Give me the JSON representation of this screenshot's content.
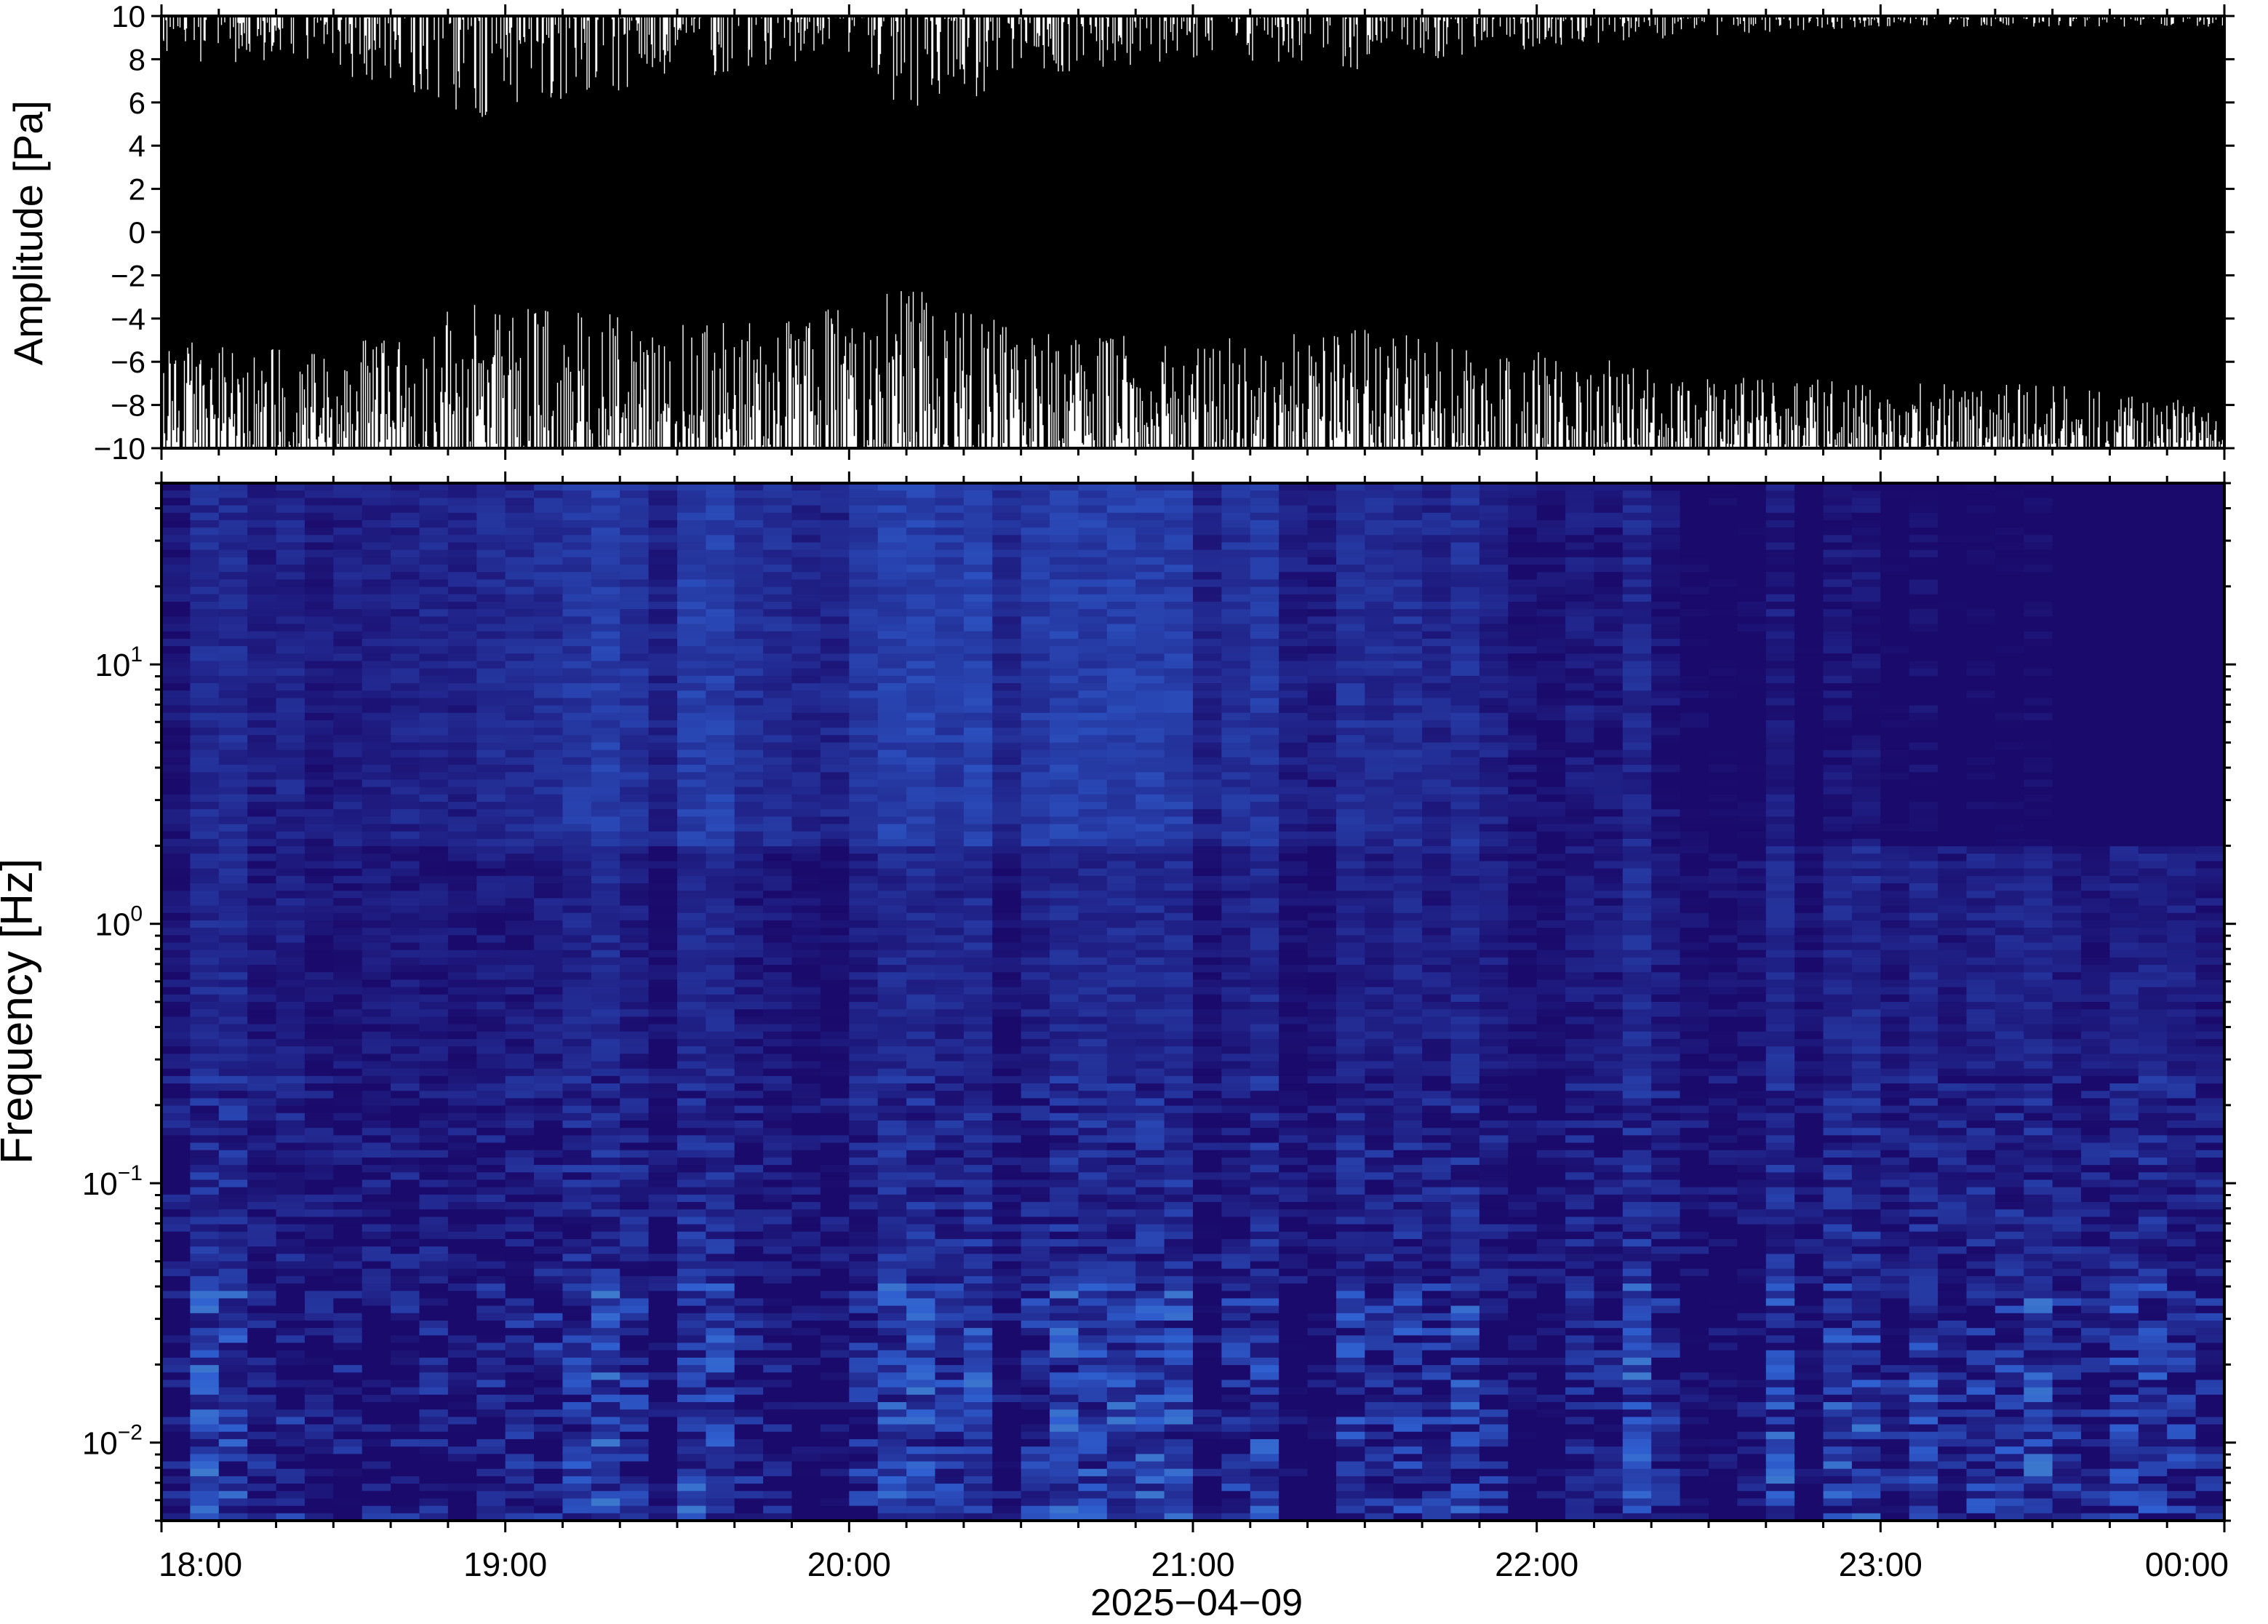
{
  "chart_data": [
    {
      "type": "line",
      "panel": "waveform",
      "ylabel": "Amplitude [Pa]",
      "ylim": [
        -10,
        10
      ],
      "yticks": [
        {
          "value": 10,
          "label": "10"
        },
        {
          "value": 8,
          "label": "8"
        },
        {
          "value": 6,
          "label": "6"
        },
        {
          "value": 4,
          "label": "4"
        },
        {
          "value": 2,
          "label": "2"
        },
        {
          "value": 0,
          "label": "0"
        },
        {
          "value": -2,
          "label": "−2"
        },
        {
          "value": -4,
          "label": "−4"
        },
        {
          "value": -6,
          "label": "−6"
        },
        {
          "value": -8,
          "label": "−8"
        },
        {
          "value": -10,
          "label": "−10"
        }
      ],
      "xlim": [
        "18:00",
        "00:00"
      ],
      "envelope": {
        "x": [
          "18:00",
          "18:30",
          "18:55",
          "19:30",
          "20:00",
          "20:10",
          "20:30",
          "21:00",
          "21:30",
          "22:00",
          "22:30",
          "23:00",
          "23:30",
          "00:00"
        ],
        "upper_min": [
          8,
          7.5,
          5,
          7,
          8,
          5,
          7,
          8,
          7.5,
          8.5,
          9,
          9.5,
          9.5,
          9.5
        ],
        "lower_max": [
          -5,
          -5.5,
          -3,
          -4,
          -3.5,
          -2.5,
          -4.5,
          -5,
          -4.5,
          -5.5,
          -6.5,
          -7,
          -7,
          -8
        ]
      },
      "grid": false
    },
    {
      "type": "heatmap",
      "panel": "spectrogram",
      "ylabel": "Frequency [Hz]",
      "yscale": "log",
      "ylim": [
        0.005,
        50
      ],
      "yticks": [
        {
          "value": 10,
          "base": "10",
          "exp": "1"
        },
        {
          "value": 1,
          "base": "10",
          "exp": "0"
        },
        {
          "value": 0.1,
          "base": "10",
          "exp": "−1"
        },
        {
          "value": 0.01,
          "base": "10",
          "exp": "−2"
        }
      ],
      "xlabel": "2025−04−09",
      "xticks": [
        "18:00",
        "19:00",
        "20:00",
        "21:00",
        "22:00",
        "23:00",
        "00:00"
      ],
      "colormap": [
        "#1a0a6b",
        "#2f5fd0",
        "#6fd6c4",
        "#cbeeaa",
        "#f2f08a",
        "#f7b44e",
        "#f08040",
        "#ee5a58",
        "#f58e8e",
        "#fccaca",
        "#fdeaea"
      ],
      "profile": {
        "log10_freq": [
          1.699,
          1.62,
          1.5,
          1.3,
          1.1,
          0.9,
          0.7,
          0.4,
          0.0,
          -0.4,
          -0.8,
          -1.0,
          -1.2,
          -1.4,
          -1.55,
          -1.7,
          -1.85,
          -2.0,
          -2.15,
          -2.3
        ],
        "level": [
          0.02,
          0.18,
          0.3,
          0.42,
          0.55,
          0.66,
          0.72,
          0.76,
          0.8,
          0.85,
          0.92,
          0.95,
          0.9,
          0.84,
          0.77,
          0.68,
          0.57,
          0.45,
          0.4,
          0.36
        ]
      },
      "grid": false
    }
  ]
}
